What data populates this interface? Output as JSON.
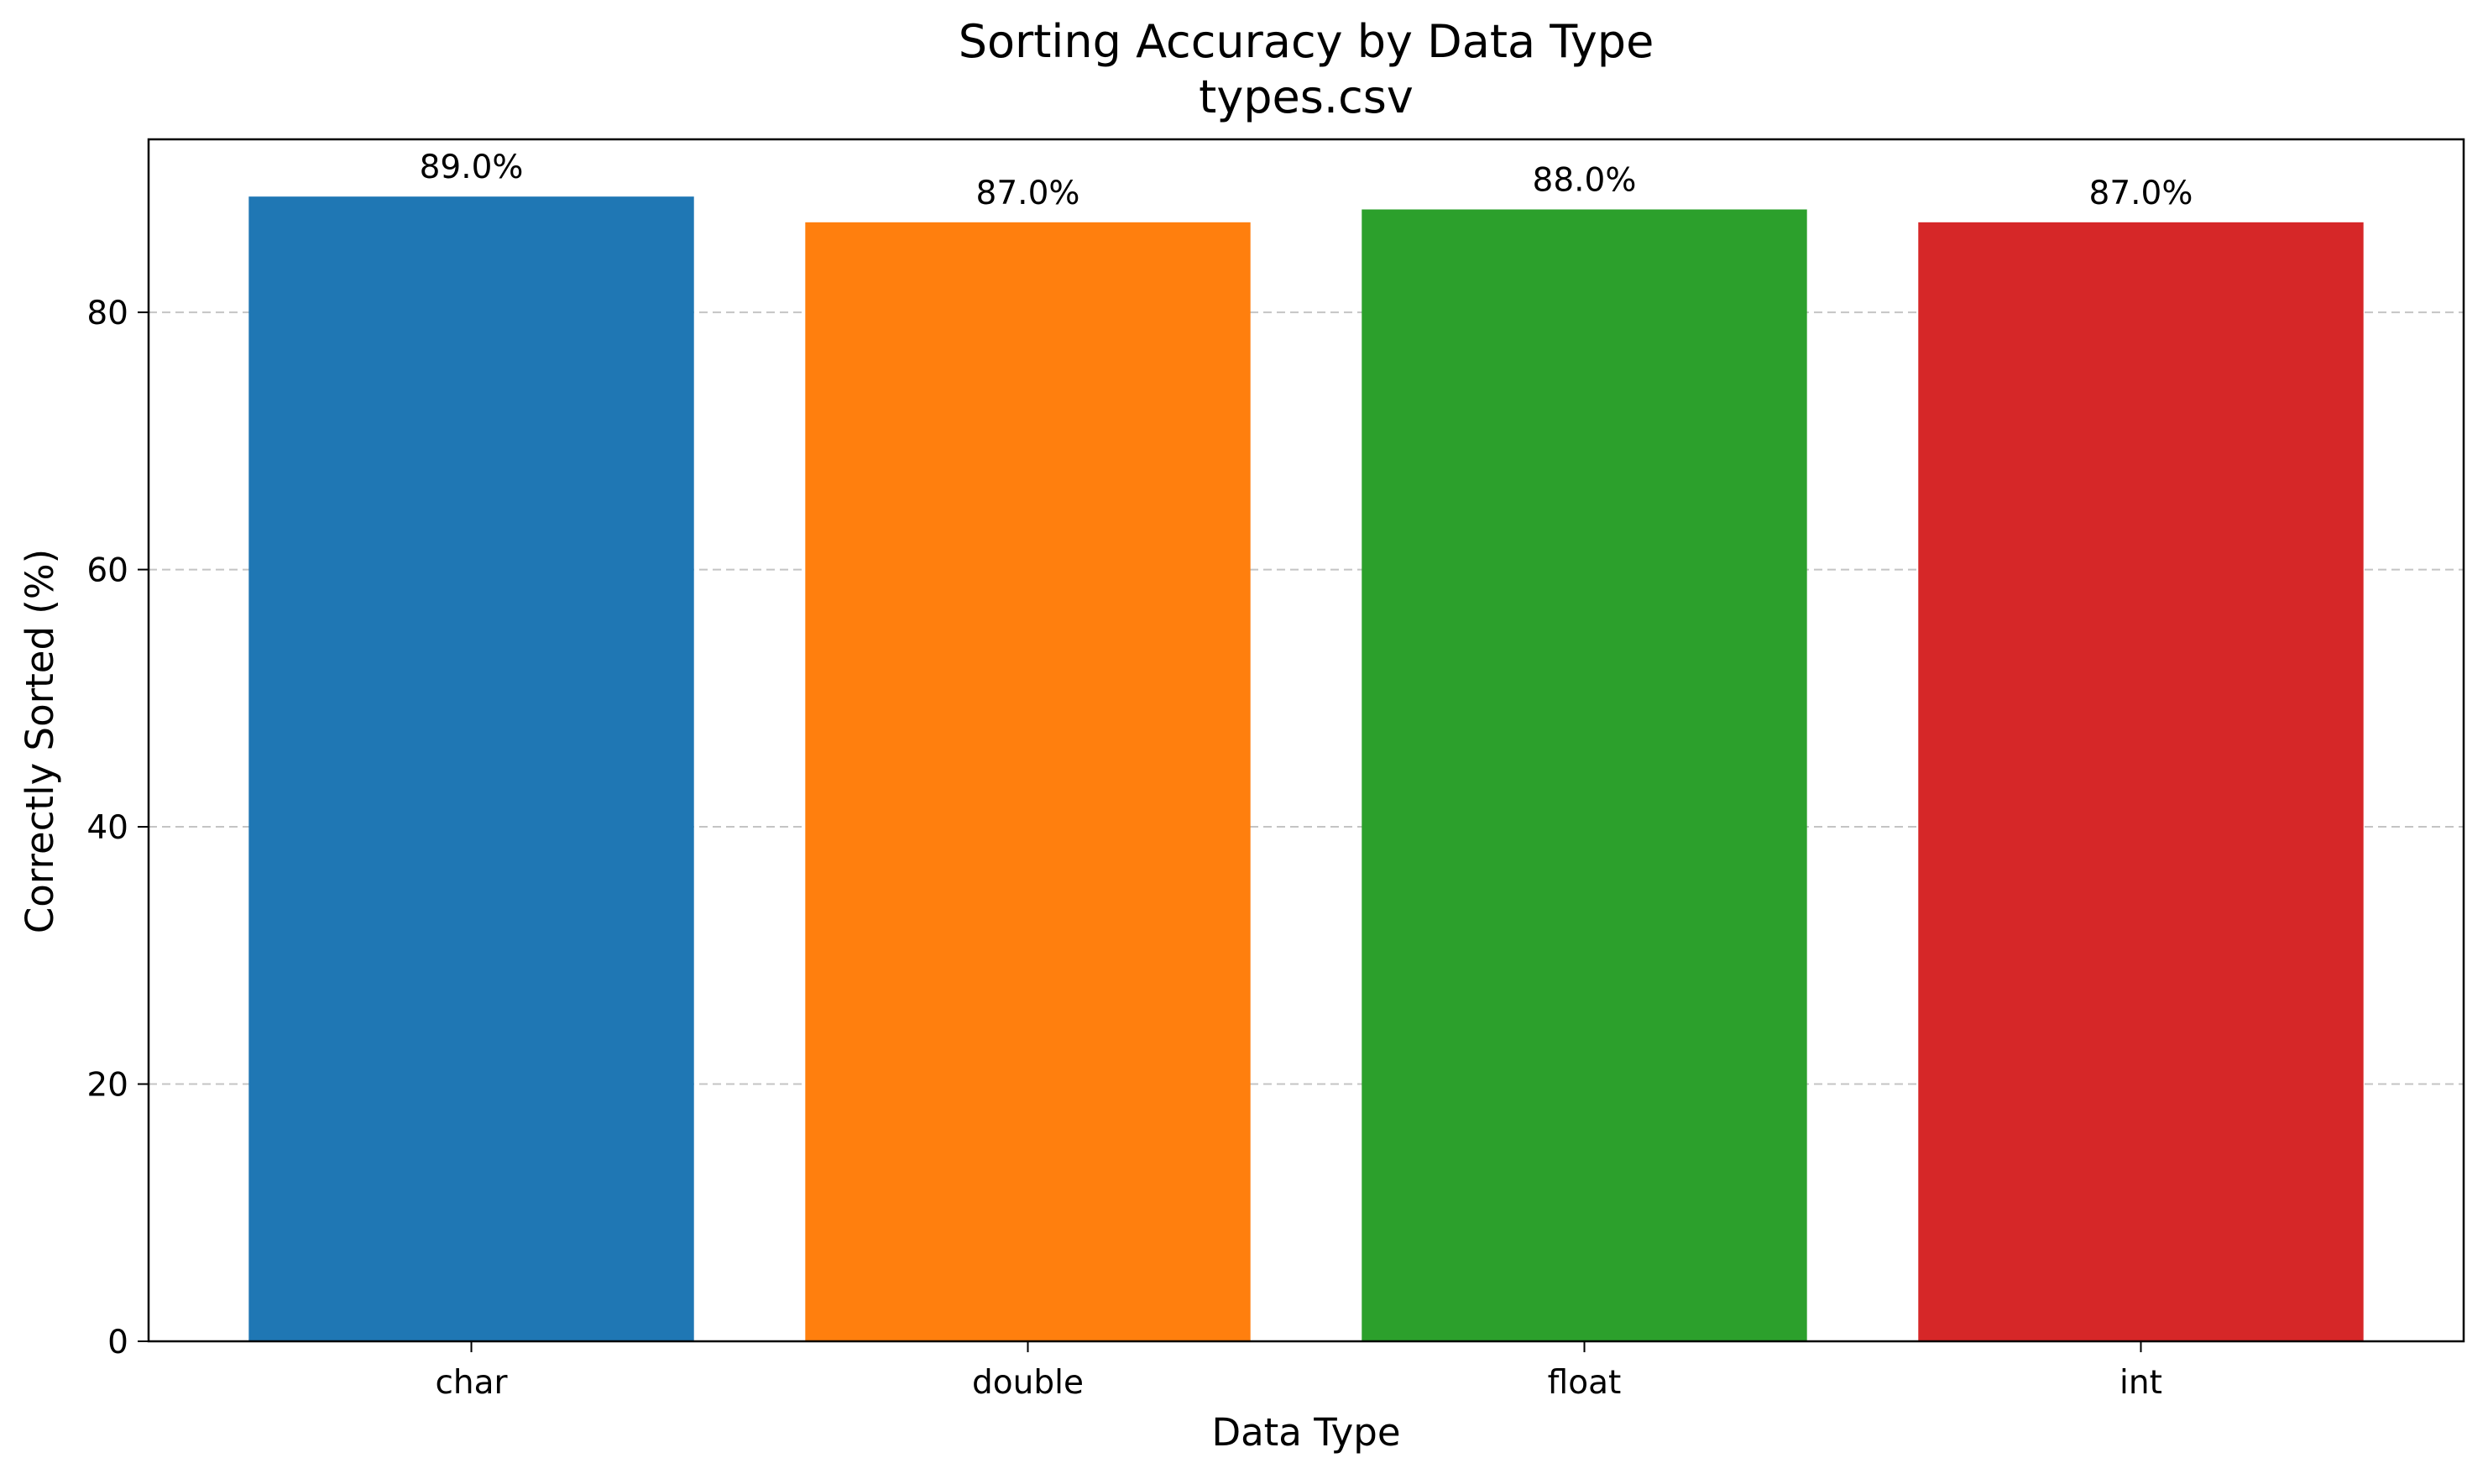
{
  "chart_data": {
    "type": "bar",
    "title": "Sorting Accuracy by Data Type",
    "subtitle": "types.csv",
    "xlabel": "Data Type",
    "ylabel": "Correctly Sorted (%)",
    "categories": [
      "char",
      "double",
      "float",
      "int"
    ],
    "values": [
      89.0,
      87.0,
      88.0,
      87.0
    ],
    "data_labels": [
      "89.0%",
      "87.0%",
      "88.0%",
      "87.0%"
    ],
    "colors": [
      "#1f77b4",
      "#ff7f0e",
      "#2ca02c",
      "#d62728"
    ],
    "ylim": [
      0,
      93.45
    ],
    "yticks": [
      0,
      20,
      40,
      60,
      80
    ],
    "grid": "y-dashed",
    "legend": "none"
  }
}
